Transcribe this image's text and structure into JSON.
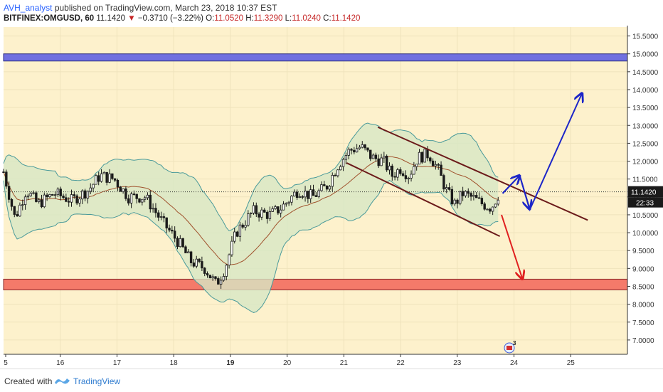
{
  "header": {
    "author": "AVH_analyst",
    "published": "published on TradingView.com, March 23, 2018 10:37 EST",
    "symbol": "BITFINEX:OMGUSD, 60",
    "last": "11.1420",
    "change": "−0.3710 (−3.22%)",
    "o_label": "O:",
    "o_value": "11.0520",
    "h_label": "H:",
    "h_value": "11.3290",
    "l_label": "L:",
    "l_value": "11.0240",
    "c_label": "C:",
    "c_value": "11.1420"
  },
  "footer": {
    "created_with": "Created with",
    "brand": "TradingView"
  },
  "colors": {
    "background": "#fdf1cc",
    "up": "#1a1a1a",
    "down": "#1a1a1a",
    "bb_fill": "#d7e7c4",
    "bb_line": "#4a9a9a",
    "bb_mid": "#a0522d",
    "resistance_zone": "#7070e0",
    "support_zone": "#f47a6a",
    "channel": "#6b1a1a",
    "arrow_up": "#1c25c8",
    "arrow_down": "#e02020"
  },
  "chart_data": {
    "type": "candlestick",
    "y_ticks": [
      "15.5000",
      "15.0000",
      "14.5000",
      "14.0000",
      "13.5000",
      "13.0000",
      "12.5000",
      "12.0000",
      "11.5000",
      "11.0000",
      "10.5000",
      "10.0000",
      "9.5000",
      "9.0000",
      "8.5000",
      "8.0000",
      "7.5000",
      "7.0000"
    ],
    "x_ticks": [
      {
        "label": "5",
        "day": 15
      },
      {
        "label": "16",
        "day": 16
      },
      {
        "label": "17",
        "day": 17
      },
      {
        "label": "18",
        "day": 18
      },
      {
        "label": "19",
        "day": 19
      },
      {
        "label": "20",
        "day": 20
      },
      {
        "label": "21",
        "day": 21
      },
      {
        "label": "22",
        "day": 22
      },
      {
        "label": "23",
        "day": 23
      },
      {
        "label": "24",
        "day": 24
      },
      {
        "label": "25",
        "day": 25
      }
    ],
    "ylim": [
      6.6,
      15.75
    ],
    "xlim": [
      15.0,
      26.0
    ],
    "last_price_label": "11.1420",
    "countdown_label": "22:33",
    "last_price": 11.142,
    "resistance_zone": [
      14.8,
      15.0
    ],
    "support_zone": [
      8.4,
      8.7
    ],
    "path_anchors": [
      {
        "t": 15.0,
        "p": 11.7
      },
      {
        "t": 15.2,
        "p": 10.4
      },
      {
        "t": 15.4,
        "p": 11.2
      },
      {
        "t": 15.6,
        "p": 10.8
      },
      {
        "t": 15.9,
        "p": 11.1
      },
      {
        "t": 16.2,
        "p": 10.9
      },
      {
        "t": 16.5,
        "p": 11.2
      },
      {
        "t": 16.7,
        "p": 11.6
      },
      {
        "t": 16.95,
        "p": 11.5
      },
      {
        "t": 17.2,
        "p": 11.0
      },
      {
        "t": 17.5,
        "p": 11.0
      },
      {
        "t": 17.8,
        "p": 10.3
      },
      {
        "t": 18.1,
        "p": 9.7
      },
      {
        "t": 18.3,
        "p": 9.2
      },
      {
        "t": 18.55,
        "p": 9.0
      },
      {
        "t": 18.75,
        "p": 8.55
      },
      {
        "t": 18.9,
        "p": 9.0
      },
      {
        "t": 19.1,
        "p": 10.0
      },
      {
        "t": 19.4,
        "p": 10.6
      },
      {
        "t": 19.7,
        "p": 10.5
      },
      {
        "t": 19.9,
        "p": 10.7
      },
      {
        "t": 20.2,
        "p": 11.2
      },
      {
        "t": 20.45,
        "p": 11.0
      },
      {
        "t": 20.7,
        "p": 11.3
      },
      {
        "t": 20.9,
        "p": 11.9
      },
      {
        "t": 21.1,
        "p": 12.3
      },
      {
        "t": 21.3,
        "p": 12.4
      },
      {
        "t": 21.5,
        "p": 12.1
      },
      {
        "t": 21.7,
        "p": 12.0
      },
      {
        "t": 21.85,
        "p": 11.6
      },
      {
        "t": 22.0,
        "p": 11.8
      },
      {
        "t": 22.15,
        "p": 11.6
      },
      {
        "t": 22.3,
        "p": 12.1
      },
      {
        "t": 22.5,
        "p": 12.2
      },
      {
        "t": 22.65,
        "p": 11.8
      },
      {
        "t": 22.8,
        "p": 11.2
      },
      {
        "t": 22.95,
        "p": 10.8
      },
      {
        "t": 23.1,
        "p": 11.1
      },
      {
        "t": 23.3,
        "p": 10.95
      },
      {
        "t": 23.45,
        "p": 10.8
      },
      {
        "t": 23.6,
        "p": 10.7
      },
      {
        "t": 23.72,
        "p": 11.05
      },
      {
        "t": 23.75,
        "p": 11.142
      }
    ],
    "channel_upper": {
      "from": {
        "t": 21.6,
        "p": 12.95
      },
      "to": {
        "t": 25.3,
        "p": 10.35
      }
    },
    "channel_lower": {
      "from": {
        "t": 21.05,
        "p": 11.95
      },
      "to": {
        "t": 23.75,
        "p": 9.9
      }
    },
    "blue_path": [
      {
        "t": 23.8,
        "p": 11.1
      },
      {
        "t": 24.1,
        "p": 11.6
      },
      {
        "t": 24.28,
        "p": 10.65
      },
      {
        "t": 25.2,
        "p": 13.9
      }
    ],
    "red_arrow": [
      {
        "t": 23.78,
        "p": 10.5
      },
      {
        "t": 24.15,
        "p": 8.7
      }
    ],
    "marker_label": "3"
  }
}
